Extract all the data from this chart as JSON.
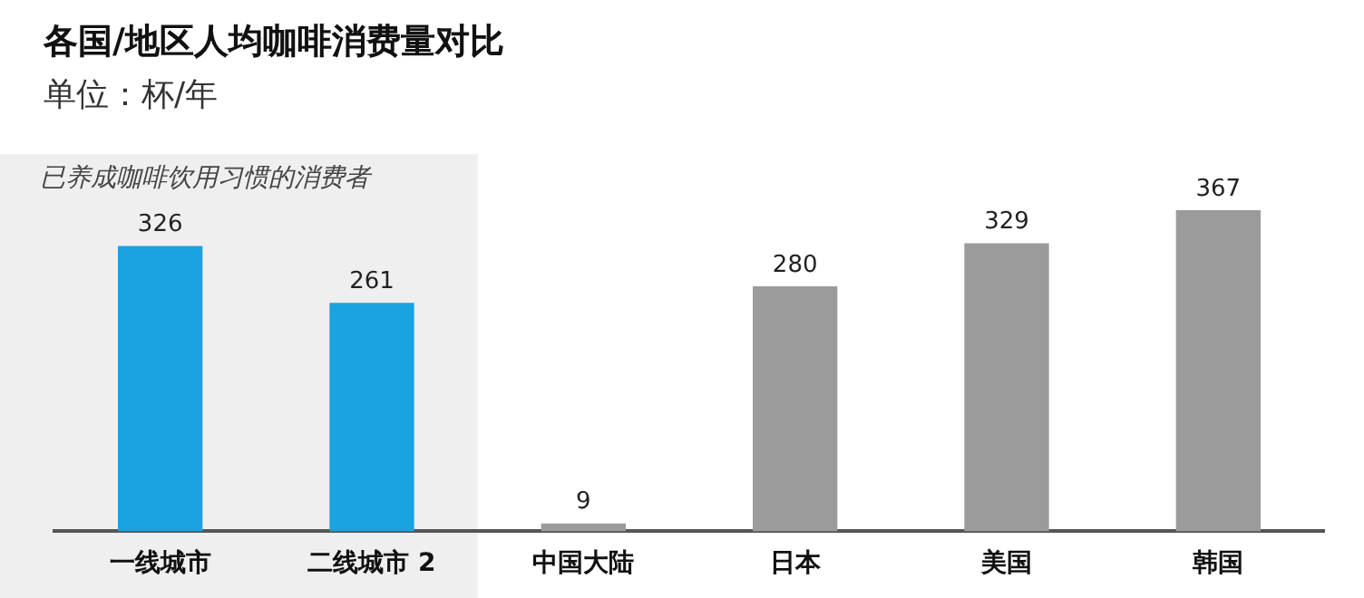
{
  "chart_data": {
    "type": "bar",
    "title": "各国/地区人均咖啡消费量对比",
    "subtitle": "单位：杯/年",
    "categories": [
      "一线城市",
      "二线城市 2",
      "中国大陆",
      "日本",
      "美国",
      "韩国"
    ],
    "values": [
      326,
      261,
      9,
      280,
      329,
      367
    ],
    "colors": [
      "#1aa3e0",
      "#1aa3e0",
      "#9b9b9b",
      "#9b9b9b",
      "#9b9b9b",
      "#9b9b9b"
    ],
    "data_labels": true,
    "grid": false,
    "legend": false,
    "tick_labels": "x",
    "bands": [
      {
        "axis": "x",
        "from": "一线城市",
        "to": "二线城市 2",
        "label": "已养成咖啡饮用习惯的消费者",
        "color": "#efefef"
      }
    ]
  }
}
